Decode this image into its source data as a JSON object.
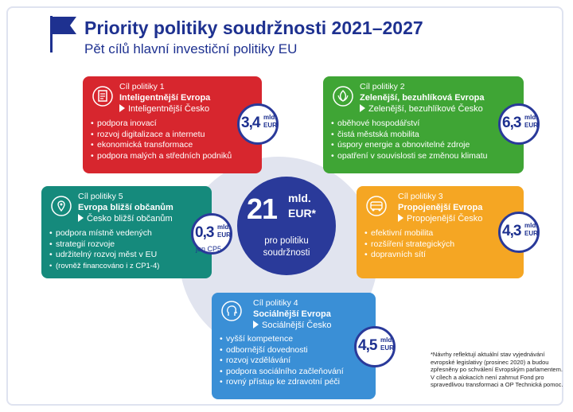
{
  "header": {
    "title": "Priority politiky soudržnosti 2021–2027",
    "subtitle": "Pět cílů hlavní investiční politiky EU"
  },
  "center": {
    "amount": "21",
    "unit_line1": "mld.",
    "unit_line2": "EUR*",
    "caption_line1": "pro politiku",
    "caption_line2": "soudržnosti"
  },
  "goals": [
    {
      "label": "Cíl politiky 1",
      "name": "Inteligentnější Evropa",
      "national": "Inteligentnější Česko",
      "items": [
        "podpora inovací",
        "rozvoj digitalizace a internetu",
        "ekonomická transformace",
        "podpora malých a středních podniků"
      ],
      "amount": "3,4",
      "unit1": "mld.",
      "unit2": "EUR",
      "note": "",
      "color": "#d7262e",
      "icon": "document-icon"
    },
    {
      "label": "Cíl politiky 2",
      "name": "Zelenější, bezuhlíková Evropa",
      "national": "Zelenější, bezuhlíkové Česko",
      "items": [
        "oběhové hospodářství",
        "čistá městská mobilita",
        "úspory energie a obnovitelné zdroje",
        "opatření v souvislosti se změnou klimatu"
      ],
      "amount": "6,3",
      "unit1": "mld.",
      "unit2": "EUR",
      "note": "",
      "color": "#3fa535",
      "icon": "leaf-icon"
    },
    {
      "label": "Cíl politiky 3",
      "name": "Propojenější Evropa",
      "national": "Propojenější Česko",
      "items": [
        "efektivní mobilita",
        "rozšíření strategických",
        "dopravních sítí"
      ],
      "amount": "4,3",
      "unit1": "mld.",
      "unit2": "EUR",
      "note": "",
      "color": "#f5a623",
      "icon": "bus-icon"
    },
    {
      "label": "Cíl politiky 4",
      "name": "Sociálnější Evropa",
      "national": "Sociálnější Česko",
      "items": [
        "vyšší kompetence",
        "odbornější dovednosti",
        "rozvoj vzdělávání",
        "podpora sociálního začleňování",
        "rovný přístup ke zdravotní péči"
      ],
      "amount": "4,5",
      "unit1": "mld.",
      "unit2": "EUR",
      "note": "",
      "color": "#3a8fd6",
      "icon": "head-icon"
    },
    {
      "label": "Cíl politiky 5",
      "name": "Evropa bližší občanům",
      "national": "Česko bližší občanům",
      "items": [
        "podpora místně vedených",
        "strategií rozvoje",
        "udržitelný rozvoj měst v EU",
        "(rovněž financováno i z CP1-4)"
      ],
      "amount": "0,3",
      "unit1": "mld.",
      "unit2": "EUR",
      "note": "jen CP5",
      "color": "#158a7c",
      "icon": "map-pin-icon"
    }
  ],
  "footnote": "*Návrhy reflektují aktuální stav vyjednávání evropské legislativy (prosinec 2020) a budou zpřesněny po schválení Evropským parlamentem. V cílech a alokacích není zahrnut Fond pro spravedlivou transformaci a OP Technická pomoc."
}
